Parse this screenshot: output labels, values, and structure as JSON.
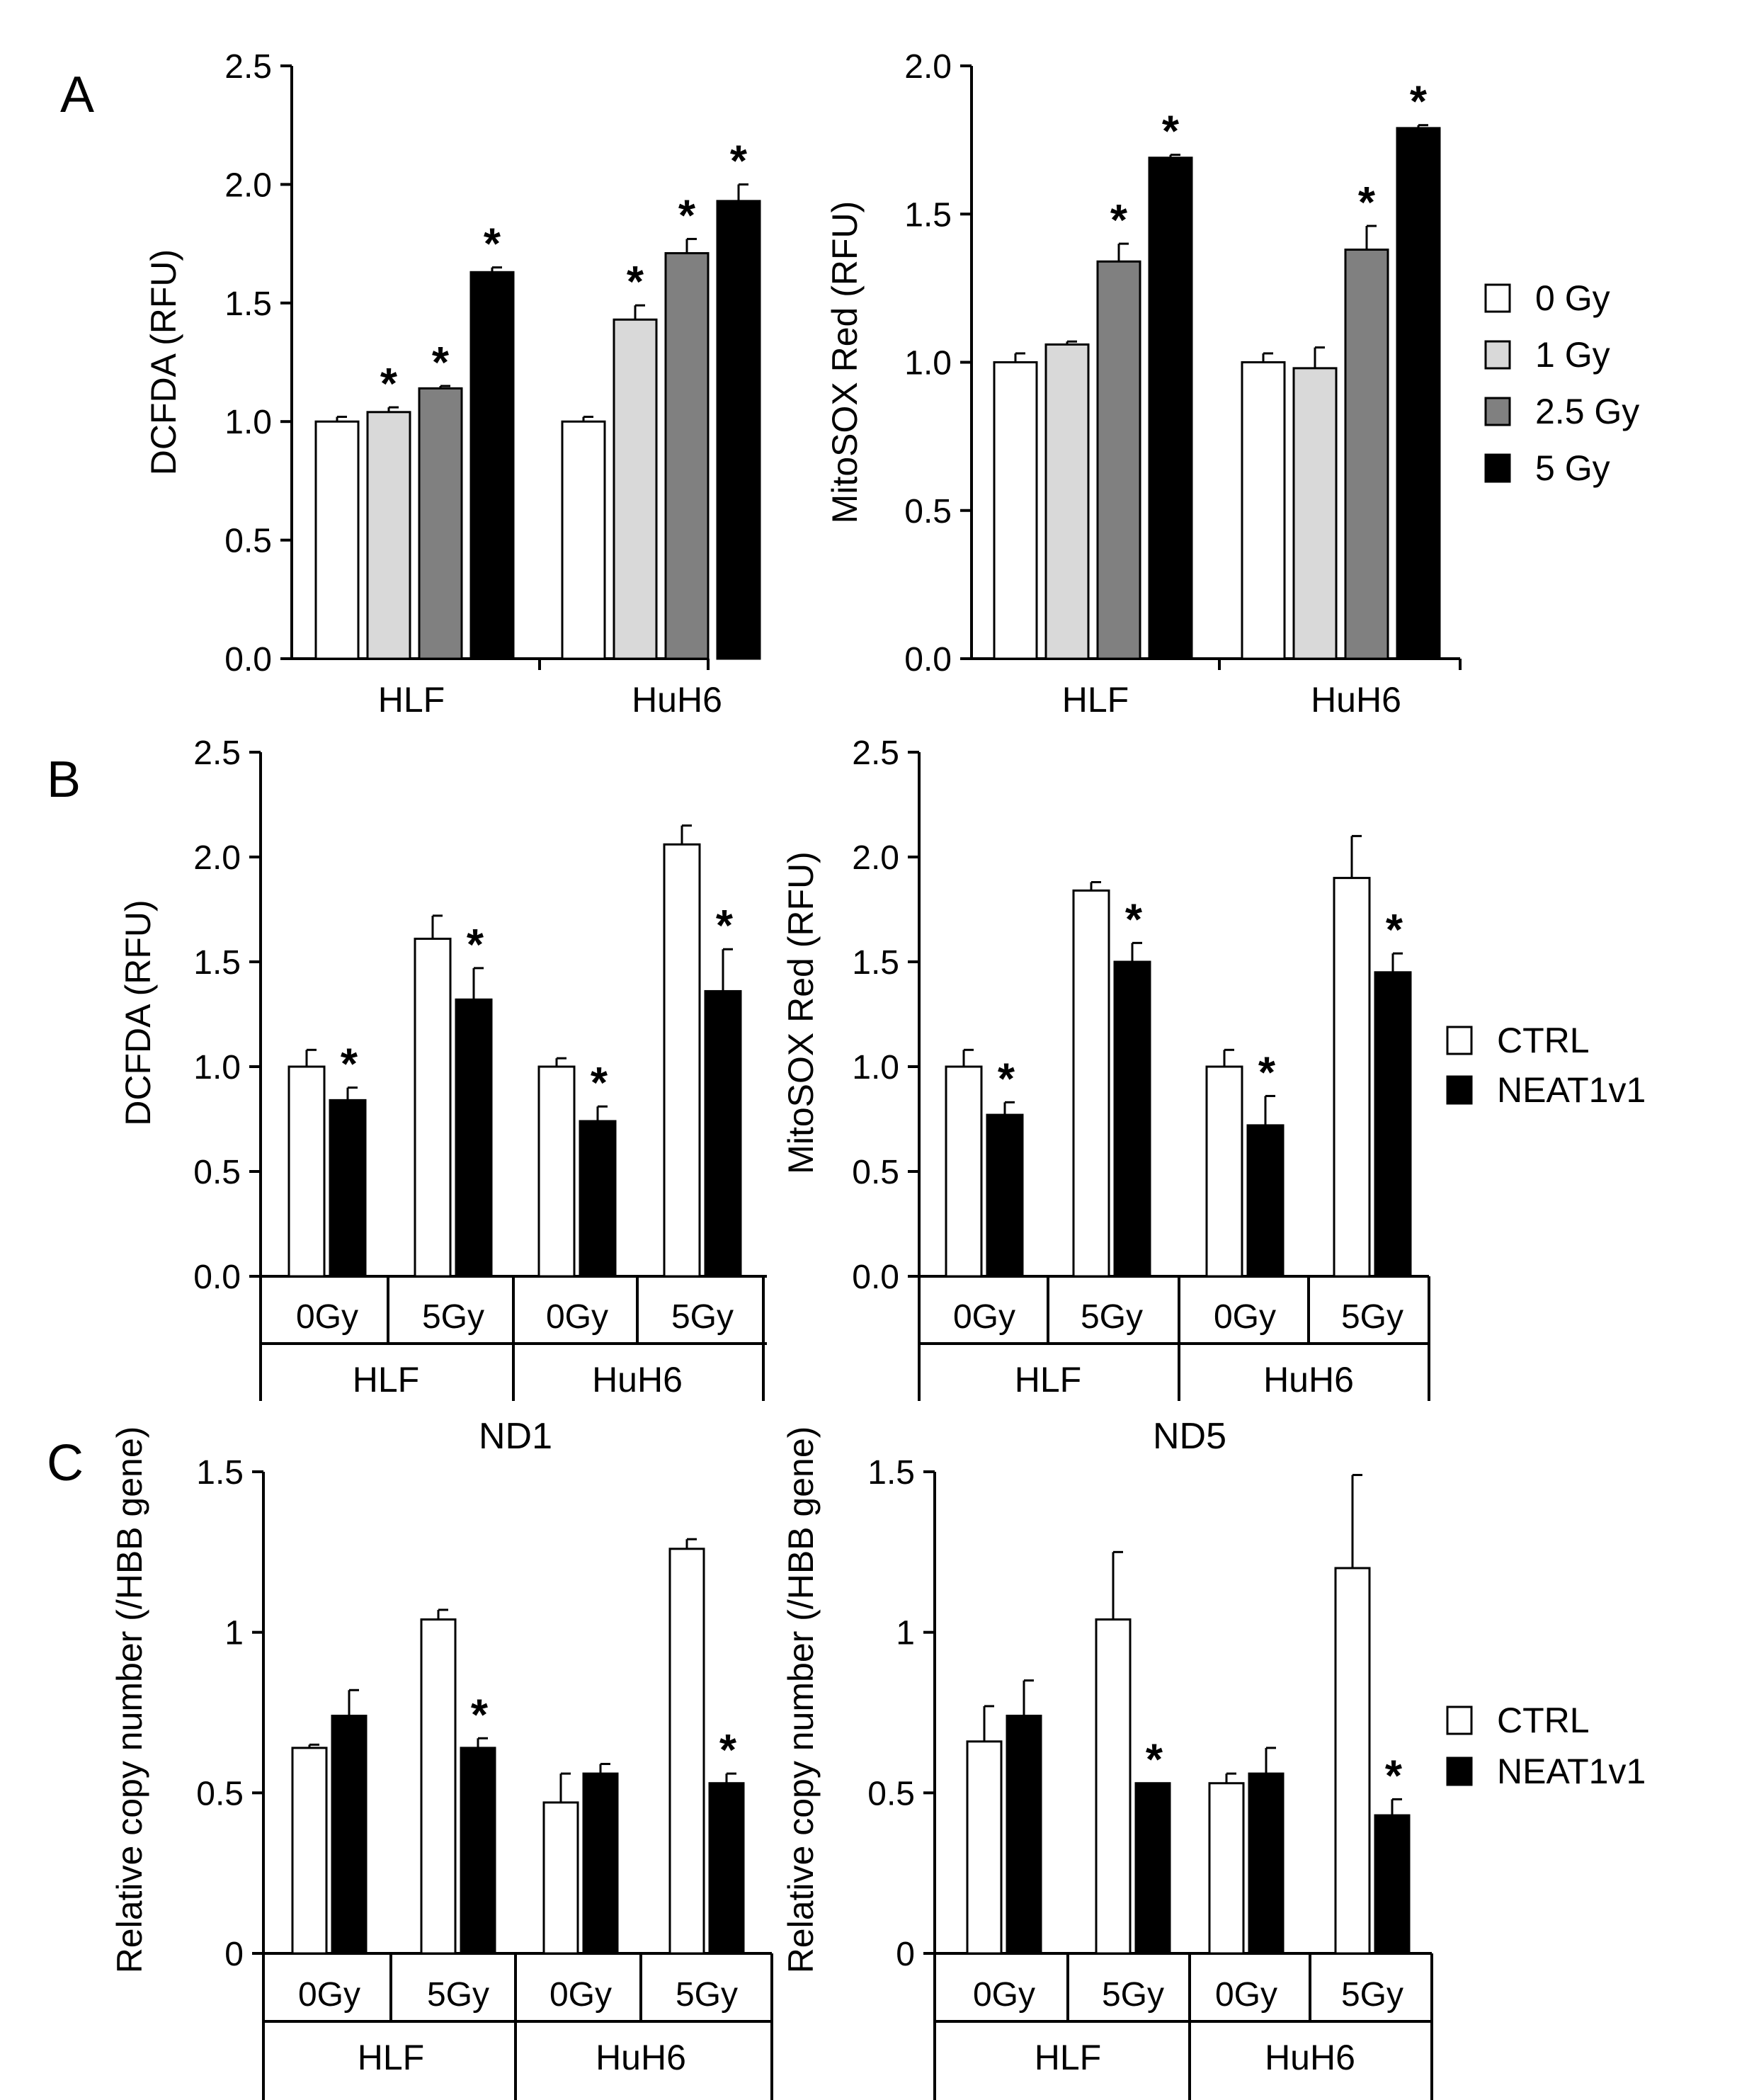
{
  "panel_labels": [
    "A",
    "B",
    "C"
  ],
  "legends": {
    "dose": {
      "entries": [
        "0 Gy",
        "1 Gy",
        "2.5 Gy",
        "5 Gy"
      ],
      "colors": [
        "#ffffff",
        "#d9d9d9",
        "#808080",
        "#000000"
      ]
    },
    "ctrl_neat": {
      "entries": [
        "CTRL",
        "NEAT1v1"
      ],
      "colors": [
        "#ffffff",
        "#000000"
      ]
    }
  },
  "chart_data": [
    {
      "id": "A1",
      "type": "bar",
      "title": "",
      "ylabel": "DCFDA (RFU)",
      "ylim": [
        0,
        2.5
      ],
      "yticks": [
        "0.0",
        "0.5",
        "1.0",
        "1.5",
        "2.0",
        "2.5"
      ],
      "groups": [
        "HLF",
        "HuH6"
      ],
      "series": [
        {
          "name": "0 Gy",
          "color": "#ffffff",
          "values": [
            1.0,
            1.0
          ],
          "errors": [
            0.02,
            0.02
          ],
          "sig": [
            false,
            false
          ]
        },
        {
          "name": "1 Gy",
          "color": "#d9d9d9",
          "values": [
            1.04,
            1.43
          ],
          "errors": [
            0.02,
            0.06
          ],
          "sig": [
            true,
            true
          ]
        },
        {
          "name": "2.5 Gy",
          "color": "#808080",
          "values": [
            1.14,
            1.71
          ],
          "errors": [
            0.01,
            0.06
          ],
          "sig": [
            true,
            true
          ]
        },
        {
          "name": "5 Gy",
          "color": "#000000",
          "values": [
            1.63,
            1.93
          ],
          "errors": [
            0.02,
            0.07
          ],
          "sig": [
            true,
            true
          ]
        }
      ]
    },
    {
      "id": "A2",
      "type": "bar",
      "title": "",
      "ylabel": "MitoSOX Red (RFU)",
      "ylim": [
        0,
        2.0
      ],
      "yticks": [
        "0.0",
        "0.5",
        "1.0",
        "1.5",
        "2.0"
      ],
      "groups": [
        "HLF",
        "HuH6"
      ],
      "series": [
        {
          "name": "0 Gy",
          "color": "#ffffff",
          "values": [
            1.0,
            1.0
          ],
          "errors": [
            0.03,
            0.03
          ],
          "sig": [
            false,
            false
          ]
        },
        {
          "name": "1 Gy",
          "color": "#d9d9d9",
          "values": [
            1.06,
            0.98
          ],
          "errors": [
            0.01,
            0.07
          ],
          "sig": [
            false,
            false
          ]
        },
        {
          "name": "2.5 Gy",
          "color": "#808080",
          "values": [
            1.34,
            1.38
          ],
          "errors": [
            0.06,
            0.08
          ],
          "sig": [
            true,
            true
          ]
        },
        {
          "name": "5 Gy",
          "color": "#000000",
          "values": [
            1.69,
            1.79
          ],
          "errors": [
            0.01,
            0.01
          ],
          "sig": [
            true,
            true
          ]
        }
      ]
    },
    {
      "id": "B1",
      "type": "bar",
      "title": "",
      "ylabel": "DCFDA (RFU)",
      "ylim": [
        0,
        2.5
      ],
      "yticks": [
        "0.0",
        "0.5",
        "1.0",
        "1.5",
        "2.0",
        "2.5"
      ],
      "groups": [
        "HLF",
        "HuH6"
      ],
      "subgroups": [
        "0Gy",
        "5Gy"
      ],
      "series": [
        {
          "name": "CTRL",
          "color": "#ffffff",
          "values": [
            1.0,
            1.61,
            1.0,
            2.06
          ],
          "errors": [
            0.08,
            0.11,
            0.04,
            0.09
          ],
          "sig": [
            false,
            false,
            false,
            false
          ]
        },
        {
          "name": "NEAT1v1",
          "color": "#000000",
          "values": [
            0.84,
            1.32,
            0.74,
            1.36
          ],
          "errors": [
            0.06,
            0.15,
            0.07,
            0.2
          ],
          "sig": [
            true,
            true,
            true,
            true
          ]
        }
      ]
    },
    {
      "id": "B2",
      "type": "bar",
      "title": "",
      "ylabel": "MitoSOX Red (RFU)",
      "ylim": [
        0,
        2.5
      ],
      "yticks": [
        "0.0",
        "0.5",
        "1.0",
        "1.5",
        "2.0",
        "2.5"
      ],
      "groups": [
        "HLF",
        "HuH6"
      ],
      "subgroups": [
        "0Gy",
        "5Gy"
      ],
      "series": [
        {
          "name": "CTRL",
          "color": "#ffffff",
          "values": [
            1.0,
            1.84,
            1.0,
            1.9
          ],
          "errors": [
            0.08,
            0.04,
            0.08,
            0.2
          ],
          "sig": [
            false,
            false,
            false,
            false
          ]
        },
        {
          "name": "NEAT1v1",
          "color": "#000000",
          "values": [
            0.77,
            1.5,
            0.72,
            1.45
          ],
          "errors": [
            0.06,
            0.09,
            0.14,
            0.09
          ],
          "sig": [
            true,
            true,
            true,
            true
          ]
        }
      ]
    },
    {
      "id": "C1",
      "type": "bar",
      "title": "ND1",
      "ylabel": "Relative copy number (/HBB gene)",
      "ylim": [
        0,
        1.5
      ],
      "yticks": [
        "0",
        "0.5",
        "1",
        "1.5"
      ],
      "groups": [
        "HLF",
        "HuH6"
      ],
      "subgroups": [
        "0Gy",
        "5Gy"
      ],
      "series": [
        {
          "name": "CTRL",
          "color": "#ffffff",
          "values": [
            0.64,
            1.04,
            0.47,
            1.26
          ],
          "errors": [
            0.01,
            0.03,
            0.09,
            0.03
          ],
          "sig": [
            false,
            false,
            false,
            false
          ]
        },
        {
          "name": "NEAT1v1",
          "color": "#000000",
          "values": [
            0.74,
            0.64,
            0.56,
            0.53
          ],
          "errors": [
            0.08,
            0.03,
            0.03,
            0.03
          ],
          "sig": [
            false,
            true,
            false,
            true
          ]
        }
      ]
    },
    {
      "id": "C2",
      "type": "bar",
      "title": "ND5",
      "ylabel": "Relative copy number (/HBB gene)",
      "ylim": [
        0,
        1.5
      ],
      "yticks": [
        "0",
        "0.5",
        "1",
        "1.5"
      ],
      "groups": [
        "HLF",
        "HuH6"
      ],
      "subgroups": [
        "0Gy",
        "5Gy"
      ],
      "series": [
        {
          "name": "CTRL",
          "color": "#ffffff",
          "values": [
            0.66,
            1.04,
            0.53,
            1.2
          ],
          "errors": [
            0.11,
            0.21,
            0.03,
            0.29
          ],
          "sig": [
            false,
            false,
            false,
            false
          ]
        },
        {
          "name": "NEAT1v1",
          "color": "#000000",
          "values": [
            0.74,
            0.53,
            0.56,
            0.43
          ],
          "errors": [
            0.11,
            0.0,
            0.08,
            0.05
          ],
          "sig": [
            false,
            true,
            false,
            true
          ]
        }
      ]
    }
  ]
}
